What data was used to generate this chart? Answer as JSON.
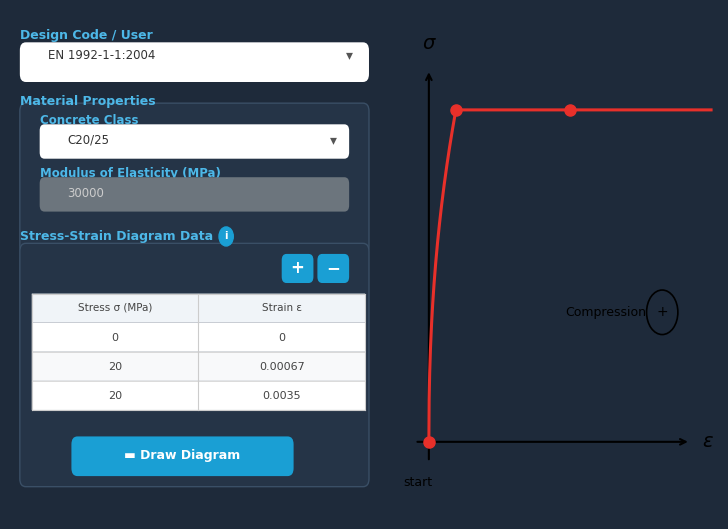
{
  "bg_color": "#1e2a3a",
  "panel_color": "#253447",
  "white": "#ffffff",
  "blue_accent": "#1a9fd4",
  "gray_input": "#6c757d",
  "text_light": "#a8c0d6",
  "title_color": "#4db8e8",
  "border_color": "#3a4f66",
  "design_code_label": "Design Code / User",
  "design_code_value": "EN 1992-1-1:2004",
  "material_label": "Material Properties",
  "concrete_label": "Concrete Class",
  "concrete_value": "C20/25",
  "modulus_label": "Modulus of Elasticity (MPa)",
  "modulus_value": "30000",
  "ssd_label": "Stress-Strain Diagram Data",
  "col1_header": "Stress σ (MPa)",
  "col2_header": "Strain ε",
  "table_rows": [
    [
      "0",
      "0"
    ],
    [
      "20",
      "0.00067"
    ],
    [
      "20",
      "0.0035"
    ]
  ],
  "button_label": "Draw Diagram",
  "curve_color": "#e8302a",
  "dot_color": "#e8302a",
  "axis_color": "#111111",
  "sigma_label": "σ",
  "epsilon_label": "ε",
  "start_label": "start",
  "compression_label": "Compression",
  "diagram_bg": "#ffffff"
}
